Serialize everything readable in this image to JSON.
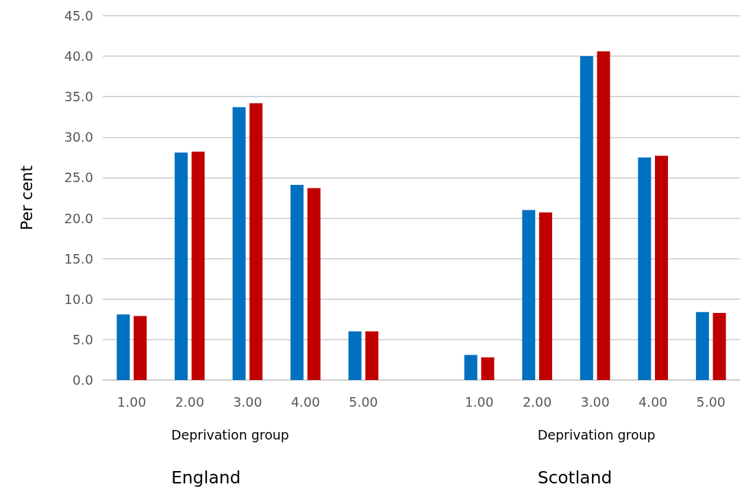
{
  "chart_data": {
    "type": "bar",
    "ylabel": "Per cent",
    "categories": [
      "1.00",
      "2.00",
      "3.00",
      "4.00",
      "5.00",
      null,
      "1.00",
      "2.00",
      "3.00",
      "4.00",
      "5.00"
    ],
    "series": [
      {
        "color": "#0070c0",
        "values": [
          8.1,
          28.1,
          33.7,
          24.1,
          6.0,
          null,
          3.1,
          21.0,
          40.0,
          27.5,
          8.4
        ]
      },
      {
        "color": "#c00000",
        "values": [
          7.9,
          28.2,
          34.2,
          23.7,
          6.0,
          null,
          2.8,
          20.7,
          40.6,
          27.7,
          8.3
        ]
      }
    ],
    "ylim": [
      0,
      45
    ],
    "yticks": [
      {
        "value": 0,
        "label": "0.0"
      },
      {
        "value": 5,
        "label": "5.0"
      },
      {
        "value": 10,
        "label": "10.0"
      },
      {
        "value": 15,
        "label": "15.0"
      },
      {
        "value": 20,
        "label": "20.0"
      },
      {
        "value": 25,
        "label": "25.0"
      },
      {
        "value": 30,
        "label": "30.0"
      },
      {
        "value": 35,
        "label": "35.0"
      },
      {
        "value": 40,
        "label": "40.0"
      },
      {
        "value": 45,
        "label": "45.0"
      }
    ],
    "grid": "y",
    "annotations": [
      "Deprivation group",
      "England",
      "Deprivation group",
      "Scotland"
    ]
  }
}
